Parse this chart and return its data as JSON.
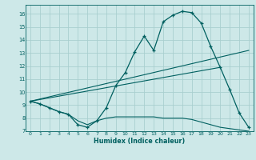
{
  "xlabel": "Humidex (Indice chaleur)",
  "bg_color": "#cde8e8",
  "grid_color": "#aacfcf",
  "line_color": "#006060",
  "xlim": [
    -0.5,
    23.5
  ],
  "ylim": [
    7.0,
    16.7
  ],
  "xticks": [
    0,
    1,
    2,
    3,
    4,
    5,
    6,
    7,
    8,
    9,
    10,
    11,
    12,
    13,
    14,
    15,
    16,
    17,
    18,
    19,
    20,
    21,
    22,
    23
  ],
  "yticks": [
    7,
    8,
    9,
    10,
    11,
    12,
    13,
    14,
    15,
    16
  ],
  "line1_x": [
    0,
    1,
    2,
    3,
    4,
    5,
    6,
    7,
    8,
    9,
    10,
    11,
    12,
    13,
    14,
    15,
    16,
    17,
    18,
    19,
    20,
    21,
    22,
    23
  ],
  "line1_y": [
    9.3,
    9.1,
    8.8,
    8.5,
    8.3,
    7.5,
    7.3,
    7.8,
    8.8,
    10.5,
    11.5,
    13.1,
    14.3,
    13.2,
    15.4,
    15.9,
    16.2,
    16.1,
    15.3,
    13.5,
    11.9,
    10.2,
    8.4,
    7.3
  ],
  "line2_x": [
    0,
    1,
    2,
    3,
    4,
    5,
    6,
    7,
    8,
    9,
    10,
    11,
    12,
    13,
    14,
    15,
    16,
    17,
    18,
    19,
    20,
    21,
    22,
    23
  ],
  "line2_y": [
    9.3,
    9.1,
    8.8,
    8.5,
    8.3,
    7.8,
    7.5,
    7.8,
    8.0,
    8.1,
    8.1,
    8.1,
    8.1,
    8.1,
    8.0,
    8.0,
    8.0,
    7.9,
    7.7,
    7.5,
    7.3,
    7.2,
    7.1,
    7.0
  ],
  "line3_x": [
    0,
    23
  ],
  "line3_y": [
    9.3,
    13.2
  ],
  "line4_x": [
    0,
    20
  ],
  "line4_y": [
    9.3,
    11.9
  ]
}
